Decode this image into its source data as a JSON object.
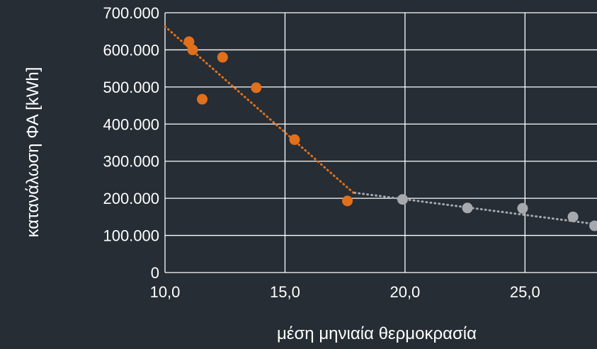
{
  "chart_data": {
    "type": "scatter",
    "title": "",
    "xlabel": "μέση μηνιαία θερμοκρασία",
    "ylabel": "κατανάλωση ΦΑ [kWh]",
    "xlim": [
      10,
      28
    ],
    "ylim": [
      0,
      700000
    ],
    "x_ticks": [
      {
        "value": 10,
        "label": "10,0"
      },
      {
        "value": 15,
        "label": "15,0"
      },
      {
        "value": 20,
        "label": "20,0"
      },
      {
        "value": 25,
        "label": "25,0"
      }
    ],
    "y_ticks": [
      {
        "value": 0,
        "label": "0"
      },
      {
        "value": 100000,
        "label": "100.000"
      },
      {
        "value": 200000,
        "label": "200.000"
      },
      {
        "value": 300000,
        "label": "300.000"
      },
      {
        "value": 400000,
        "label": "400.000"
      },
      {
        "value": 500000,
        "label": "500.000"
      },
      {
        "value": 600000,
        "label": "600.000"
      },
      {
        "value": 700000,
        "label": "700.000"
      }
    ],
    "grid": true,
    "legend": "none",
    "series": [
      {
        "color": "#e0701c",
        "points": [
          {
            "x": 11.0,
            "y": 622000
          },
          {
            "x": 11.15,
            "y": 600000
          },
          {
            "x": 11.55,
            "y": 467000
          },
          {
            "x": 12.4,
            "y": 580000
          },
          {
            "x": 13.8,
            "y": 498000
          },
          {
            "x": 15.4,
            "y": 358000
          },
          {
            "x": 17.6,
            "y": 193000
          }
        ],
        "trendline": {
          "from": [
            10,
            663000
          ],
          "to": [
            17.9,
            212000
          ]
        }
      },
      {
        "color": "#a6a9ae",
        "points": [
          {
            "x": 19.9,
            "y": 197000
          },
          {
            "x": 22.6,
            "y": 174000
          },
          {
            "x": 24.9,
            "y": 173000
          },
          {
            "x": 27.0,
            "y": 150000
          },
          {
            "x": 27.9,
            "y": 126000
          }
        ],
        "trendline": {
          "from": [
            17.9,
            215000
          ],
          "to": [
            28.0,
            130000
          ]
        }
      }
    ]
  }
}
